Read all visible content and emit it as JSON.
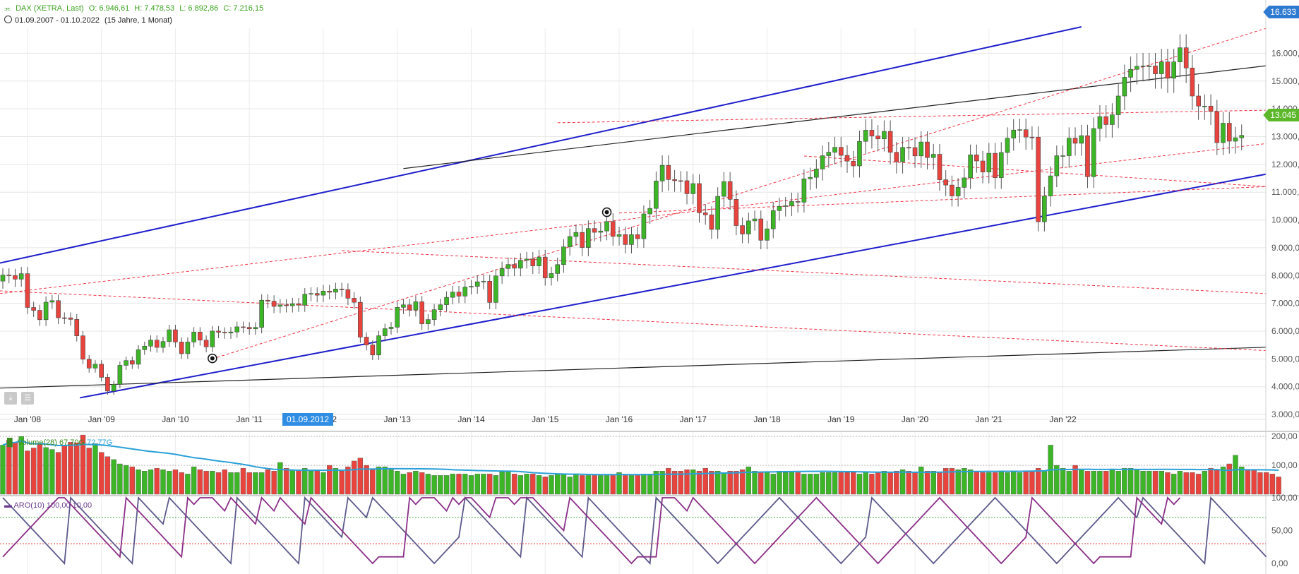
{
  "header": {
    "symbol": "DAX (XETRA, Last)",
    "open_label": "O: 6.946,61",
    "high_label": "H: 7.478,53",
    "low_label": "L: 6.892,86",
    "close_label": "C: 7.216,15",
    "range": "01.09.2007 - 01.10.2022",
    "range_detail": "(15 Jahre, 1 Monat)"
  },
  "badges": {
    "top_value": "16.633",
    "last_value": "13.045",
    "hover_date": "01.09.2012"
  },
  "colors": {
    "up": "#3cb526",
    "down": "#e8433d",
    "trend_blue": "#1f1fcc",
    "dashed_red": "#ee3344",
    "volume_avg": "#2aa0d8",
    "aroon_up": "#8b2f88",
    "aroon_down": "#5d5a8c",
    "price_label": "#5cb82a",
    "accent": "#2f8de4"
  },
  "volume_panel": {
    "title": "Volume(28)",
    "v1": "67,70G",
    "v2": "72,77G"
  },
  "aroon_panel": {
    "title": "ARO(10)",
    "v1": "100,00",
    "v2": "10,00"
  },
  "chart_data": [
    {
      "type": "candlestick",
      "title": "DAX (XETRA, Last)",
      "period": "1 Monat",
      "x_tick_labels": [
        "Jan '08",
        "Jan '09",
        "Jan '10",
        "Jan '11",
        "Jan '12",
        "Jan '13",
        "Jan '14",
        "Jan '15",
        "Jan '16",
        "Jan '17",
        "Jan '18",
        "Jan '19",
        "Jan '20",
        "Jan '21",
        "Jan '22"
      ],
      "y_tick_labels": [
        "3.000,0",
        "4.000,0",
        "5.000,0",
        "6.000,0",
        "7.000,0",
        "8.000,0",
        "9.000,0",
        "10.000,",
        "11.000,",
        "12.000,",
        "13.000,",
        "14.000,",
        "15.000,",
        "16.000,"
      ],
      "y_range": [
        2900,
        16900
      ],
      "start": "2007-09",
      "closes": [
        8019,
        8002,
        7870,
        8067,
        6851,
        6748,
        6412,
        7042,
        7097,
        6480,
        6479,
        6423,
        5831,
        4988,
        4669,
        4810,
        4338,
        3843,
        4085,
        4769,
        4940,
        4809,
        5332,
        5459,
        5676,
        5414,
        5625,
        6048,
        5608,
        5188,
        5608,
        5965,
        5675,
        5434,
        6002,
        5957,
        5933,
        5969,
        6154,
        6136,
        6082,
        6135,
        7112,
        7077,
        6890,
        6942,
        6913,
        6987,
        6935,
        7329,
        7354,
        7294,
        7441,
        7400,
        7515,
        7494,
        7184,
        7037,
        5784,
        5502,
        5141,
        5834,
        6088,
        6141,
        6856,
        6946,
        6761,
        7056,
        6264,
        6416,
        6772,
        6950,
        7216,
        7405,
        7260,
        7587,
        7612,
        7776,
        7795,
        7033,
        7986,
        8254,
        8398,
        8265,
        8551,
        8594,
        8348,
        8665,
        7914,
        8073,
        8394,
        9034,
        9405,
        9552,
        9009,
        9692,
        9556,
        9603,
        9943,
        9407,
        9474,
        9116,
        9470,
        9326,
        10218,
        10417,
        11403,
        11966,
        11454,
        11414,
        11413,
        10945,
        11309,
        10259,
        10186,
        9660,
        10850,
        11382,
        10743,
        9798,
        9495,
        9966,
        10039,
        9270,
        9680,
        10337,
        10492,
        10511,
        10665,
        10640,
        11481,
        11535,
        11834,
        12313,
        12438,
        12615,
        12325,
        12118,
        11946,
        12829,
        13230,
        13024,
        12918,
        13189,
        12436,
        12096,
        12612,
        12605,
        12306,
        12806,
        12246,
        12364,
        11447,
        11257,
        10865,
        11173,
        11516,
        12344,
        12123,
        11727,
        12399,
        11523,
        12428,
        12945,
        13236,
        13249,
        12982,
        12981,
        9936,
        10862,
        11587,
        12311,
        12313,
        12945,
        12760,
        13033,
        11556,
        13291,
        13719,
        13433,
        13786,
        14461,
        15136,
        15421,
        15531,
        15544,
        15544,
        15260,
        15689,
        15100,
        15688,
        16198,
        15471,
        14461,
        14098,
        14098,
        13904,
        12783,
        13484,
        12835,
        12960,
        13045
      ],
      "notes": "Approximate monthly closes read from candle bodies; candle body color green = close above open, red = close below open."
    },
    {
      "type": "bar",
      "title": "Volume(28)",
      "y_tick_labels": [
        "100,00",
        "200,00"
      ],
      "y_range": [
        0,
        215
      ],
      "values": [
        170,
        187,
        180,
        200,
        150,
        160,
        176,
        162,
        155,
        145,
        170,
        180,
        178,
        205,
        160,
        175,
        145,
        130,
        120,
        105,
        100,
        95,
        85,
        80,
        85,
        90,
        85,
        80,
        85,
        75,
        70,
        95,
        85,
        80,
        80,
        75,
        85,
        75,
        75,
        90,
        75,
        75,
        75,
        85,
        80,
        110,
        90,
        85,
        85,
        90,
        80,
        85,
        75,
        100,
        90,
        80,
        95,
        115,
        125,
        100,
        85,
        95,
        95,
        85,
        80,
        70,
        75,
        80,
        75,
        70,
        65,
        65,
        65,
        70,
        70,
        70,
        65,
        70,
        70,
        70,
        65,
        80,
        80,
        70,
        65,
        70,
        70,
        65,
        60,
        65,
        70,
        70,
        60,
        70,
        65,
        65,
        65,
        65,
        65,
        65,
        75,
        65,
        65,
        65,
        70,
        70,
        80,
        80,
        90,
        80,
        80,
        85,
        85,
        80,
        90,
        80,
        80,
        75,
        80,
        80,
        85,
        95,
        80,
        75,
        75,
        70,
        80,
        75,
        80,
        75,
        70,
        70,
        70,
        75,
        75,
        75,
        75,
        75,
        75,
        70,
        75,
        70,
        75,
        80,
        75,
        80,
        85,
        80,
        75,
        95,
        80,
        80,
        75,
        90,
        90,
        85,
        90,
        85,
        80,
        75,
        75,
        75,
        80,
        75,
        80,
        75,
        80,
        80,
        90,
        80,
        170,
        100,
        90,
        80,
        100,
        85,
        80,
        80,
        80,
        80,
        85,
        80,
        90,
        90,
        85,
        80,
        80,
        80,
        80,
        75,
        70,
        80,
        75,
        75,
        70,
        80,
        90,
        85,
        95,
        105,
        135,
        95,
        85,
        85,
        75,
        75,
        70,
        60
      ],
      "average_label": "72,77G"
    },
    {
      "type": "line",
      "title": "ARO(10)",
      "y_tick_labels": [
        "0,00",
        "50,00",
        "100,00"
      ],
      "y_range": [
        0,
        100
      ],
      "series": [
        {
          "name": "",
          "values": [
            100,
            90,
            80,
            70,
            60,
            50,
            40,
            30,
            20,
            10,
            0,
            100,
            90,
            80,
            70,
            60,
            50,
            40,
            30,
            20,
            10,
            0,
            100,
            90,
            80,
            70,
            60,
            100,
            90,
            80,
            70,
            60,
            50,
            40,
            30,
            20,
            10,
            0,
            100,
            90,
            80,
            70,
            60,
            50,
            40,
            30,
            20,
            10,
            0,
            100,
            90,
            80,
            70,
            60,
            50,
            40,
            100,
            90,
            80,
            70,
            100,
            90,
            80,
            70,
            60,
            50,
            40,
            30,
            20,
            10,
            0,
            10,
            20,
            30,
            40,
            100,
            90,
            80,
            70,
            60,
            50,
            40,
            30,
            20,
            10,
            100,
            90,
            80,
            70,
            60,
            50,
            40,
            30,
            20,
            10,
            100,
            90,
            80,
            70,
            60,
            50,
            40,
            30,
            20,
            10,
            0,
            100,
            90,
            80,
            70,
            60,
            50,
            40,
            30,
            20,
            10,
            0,
            10,
            20,
            30,
            40,
            50,
            60,
            70,
            80,
            90,
            100,
            90,
            80,
            70,
            60,
            50,
            40,
            30,
            20,
            10,
            0,
            10,
            20,
            30,
            40,
            100,
            90,
            80,
            70,
            60,
            50,
            40,
            30,
            20,
            10,
            0,
            10,
            20,
            30,
            40,
            50,
            60,
            70,
            80,
            90,
            100,
            90,
            80,
            70,
            60,
            50,
            40,
            30,
            20,
            10,
            0,
            10,
            20,
            30,
            40,
            50,
            60,
            70,
            80,
            90,
            100,
            90,
            80,
            70,
            100,
            90,
            80,
            70,
            60,
            50,
            40,
            30,
            20,
            10,
            0,
            100,
            90,
            80,
            70,
            60,
            50,
            40,
            30,
            20,
            10
          ]
        },
        {
          "name": "",
          "values": [
            10,
            20,
            30,
            40,
            50,
            60,
            70,
            80,
            90,
            100,
            100,
            90,
            80,
            70,
            60,
            50,
            40,
            30,
            20,
            10,
            100,
            90,
            80,
            70,
            60,
            50,
            40,
            30,
            20,
            10,
            100,
            90,
            100,
            100,
            100,
            90,
            80,
            100,
            90,
            80,
            70,
            60,
            100,
            90,
            80,
            100,
            90,
            80,
            70,
            60,
            100,
            90,
            80,
            70,
            60,
            50,
            40,
            30,
            20,
            10,
            0,
            10,
            10,
            10,
            10,
            10,
            100,
            90,
            100,
            100,
            100,
            90,
            80,
            100,
            90,
            100,
            100,
            90,
            80,
            70,
            100,
            100,
            100,
            90,
            100,
            100,
            100,
            90,
            80,
            70,
            60,
            50,
            100,
            90,
            80,
            70,
            60,
            50,
            40,
            30,
            20,
            10,
            0,
            10,
            10,
            10,
            10,
            100,
            100,
            100,
            90,
            80,
            100,
            90,
            80,
            70,
            60,
            50,
            40,
            30,
            20,
            10,
            0,
            10,
            20,
            30,
            40,
            50,
            60,
            70,
            80,
            90,
            100,
            90,
            80,
            70,
            60,
            50,
            40,
            30,
            20,
            10,
            0,
            10,
            20,
            30,
            40,
            50,
            60,
            70,
            80,
            90,
            100,
            90,
            80,
            70,
            60,
            50,
            40,
            30,
            20,
            10,
            0,
            10,
            20,
            30,
            40,
            100,
            90,
            80,
            70,
            60,
            50,
            40,
            30,
            20,
            10,
            0,
            10,
            10,
            10,
            10,
            10,
            10,
            100,
            90,
            80,
            70,
            60,
            100,
            90,
            100
          ]
        }
      ]
    }
  ]
}
